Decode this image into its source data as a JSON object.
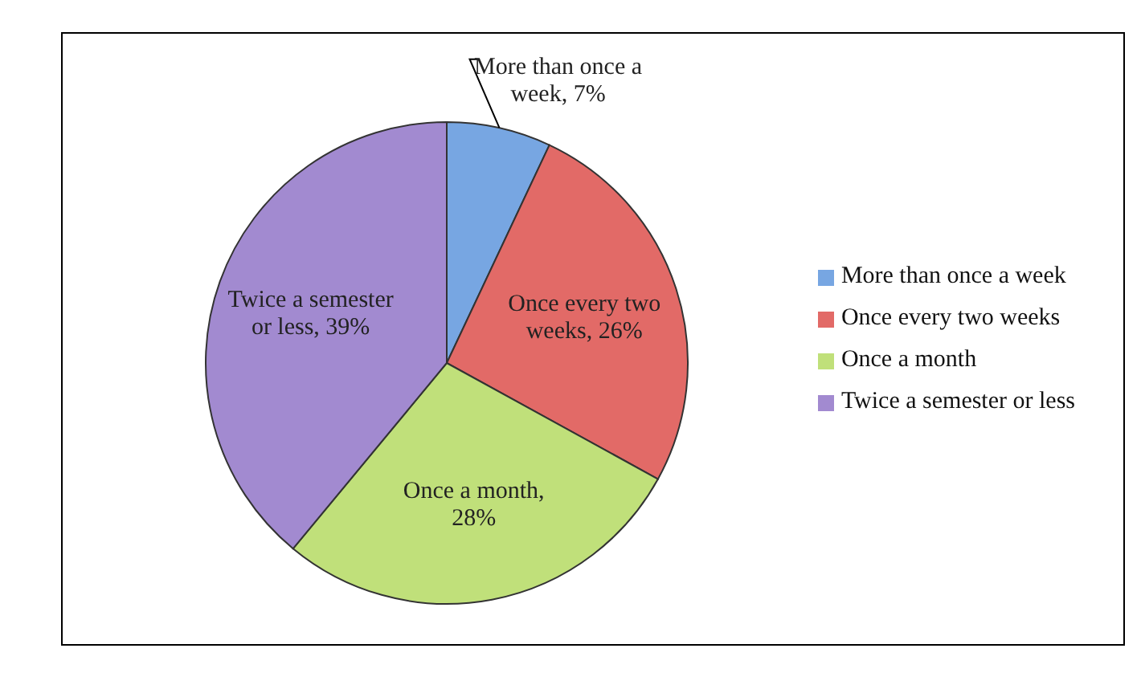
{
  "chart_data": {
    "type": "pie",
    "categories": [
      "More than once a week",
      "Once every two weeks",
      "Once a month",
      "Twice a semester or less"
    ],
    "values": [
      7,
      26,
      28,
      39
    ],
    "value_labels": [
      "More than once a week, 7%",
      "Once every two weeks, 26%",
      "Once a month, 28%",
      "Twice a semester or less, 39%"
    ],
    "colors": [
      "#77a6e2",
      "#e26a67",
      "#c0e07a",
      "#a28ad0"
    ],
    "legend": "right"
  }
}
